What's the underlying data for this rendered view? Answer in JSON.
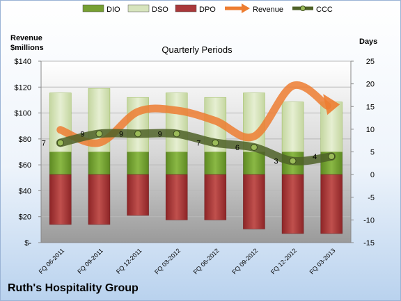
{
  "chart_data": {
    "type": "bar",
    "title": "Quarterly Periods",
    "company": "Ruth's Hospitality Group",
    "ylabel_left": [
      "Revenue",
      "$millions"
    ],
    "ylabel_right": "Days",
    "categories": [
      "FQ 06-2011",
      "FQ 09-2011",
      "FQ 12-2011",
      "FQ 03-2012",
      "FQ 06-2012",
      "FQ 09-2012",
      "FQ 12-2012",
      "FQ 03-2013"
    ],
    "y_left": {
      "min": 0,
      "max": 140,
      "step": 20,
      "tick_labels": [
        "$-",
        "$20",
        "$40",
        "$60",
        "$80",
        "$100",
        "$120",
        "$140"
      ]
    },
    "y_right": {
      "min": -15,
      "max": 25,
      "step": 5
    },
    "grid": true,
    "legend_position": "top",
    "series": [
      {
        "name": "DIO",
        "type": "stacked-bar",
        "axis": "right",
        "color": "#77a033",
        "values": [
          5,
          5,
          5,
          5,
          5,
          5,
          5,
          5
        ]
      },
      {
        "name": "DSO",
        "type": "stacked-bar",
        "axis": "right",
        "color": "#d7e4bd",
        "values": [
          13,
          14,
          12,
          13,
          12,
          13,
          11,
          11
        ]
      },
      {
        "name": "DPO",
        "type": "negative-bar",
        "axis": "right",
        "color": "#a9383a",
        "values": [
          -11,
          -11,
          -9,
          -10,
          -10,
          -12,
          -13,
          -13
        ]
      },
      {
        "name": "Revenue",
        "type": "arrow-line",
        "axis": "left",
        "color": "#ed7d31",
        "values": [
          87,
          77,
          101,
          102,
          94,
          82,
          121,
          105
        ]
      },
      {
        "name": "CCC",
        "type": "line",
        "axis": "right",
        "color": "#4f6228",
        "values": [
          7,
          9,
          9,
          9,
          7,
          6,
          3,
          4
        ],
        "labels": [
          "7",
          "9",
          "9",
          "9",
          "7",
          "6",
          "3",
          "4"
        ]
      }
    ]
  },
  "legend": [
    {
      "name": "DIO",
      "kind": "box",
      "color": "#77a033"
    },
    {
      "name": "DSO",
      "kind": "box",
      "color": "#d7e4bd"
    },
    {
      "name": "DPO",
      "kind": "box",
      "color": "#a9383a"
    },
    {
      "name": "Revenue",
      "kind": "arrow",
      "color": "#ed7d31"
    },
    {
      "name": "CCC",
      "kind": "line-dot",
      "color": "#4f6228"
    }
  ]
}
